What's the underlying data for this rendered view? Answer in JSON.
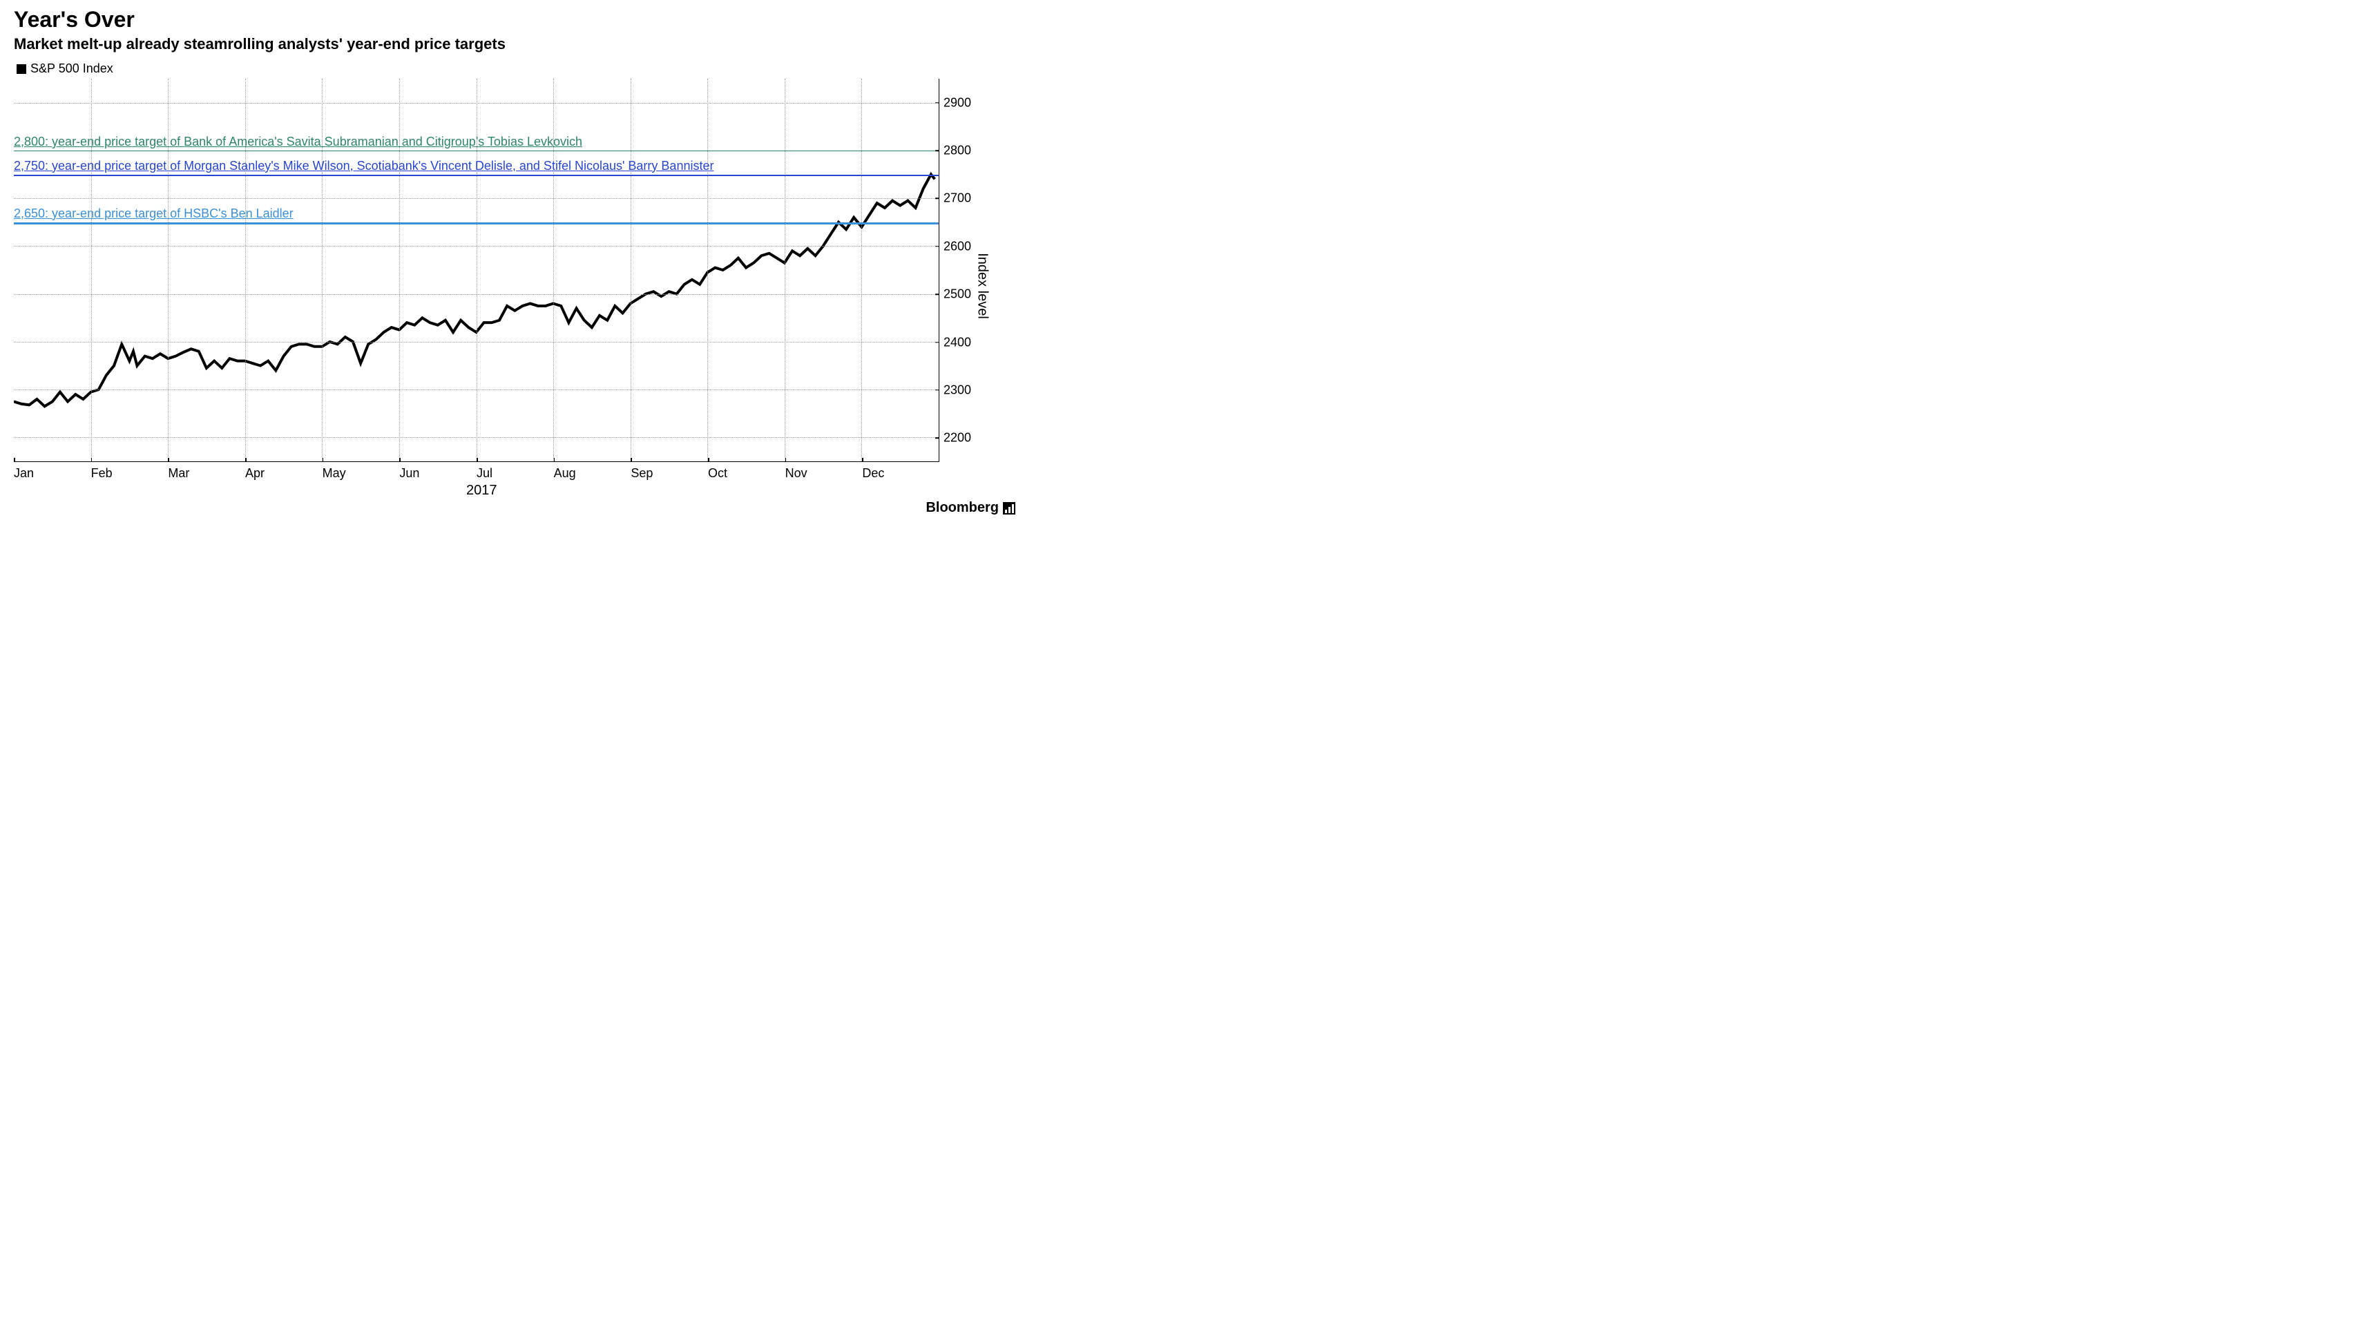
{
  "chart": {
    "type": "line",
    "title": "Year's Over",
    "subtitle": "Market melt-up already steamrolling analysts' year-end price targets",
    "legend_label": "S&P 500 Index",
    "legend_marker_color": "#000000",
    "y_axis_label": "Index level",
    "x_year_label": "2017",
    "source_label": "Bloomberg",
    "background_color": "#ffffff",
    "grid_color": "#999999",
    "axis_color": "#000000",
    "title_fontsize": 32,
    "subtitle_fontsize": 22,
    "label_fontsize": 18,
    "ylim": [
      2150,
      2950
    ],
    "y_ticks": [
      2200,
      2300,
      2400,
      2500,
      2600,
      2700,
      2800,
      2900
    ],
    "x_months": [
      "Jan",
      "Feb",
      "Mar",
      "Apr",
      "May",
      "Jun",
      "Jul",
      "Aug",
      "Sep",
      "Oct",
      "Nov",
      "Dec"
    ],
    "x_domain": [
      0,
      12
    ],
    "targets": [
      {
        "value": 2800,
        "color": "#2e8569",
        "line_width": 1.5,
        "label": "2,800: year-end price target of Bank of America's Savita Subramanian and Citigroup's Tobias Levkovich"
      },
      {
        "value": 2750,
        "color": "#2846d1",
        "line_width": 2,
        "label": "2,750: year-end price target of Morgan Stanley's Mike Wilson, Scotiabank's Vincent Delisle, and Stifel Nicolaus' Barry Bannister"
      },
      {
        "value": 2650,
        "color": "#3b8fd8",
        "line_width": 3,
        "label": "2,650: year-end price target of HSBC's Ben Laidler"
      }
    ],
    "series": {
      "name": "S&P 500 Index",
      "color": "#000000",
      "line_width": 2,
      "data": [
        [
          0.0,
          2275
        ],
        [
          0.1,
          2270
        ],
        [
          0.2,
          2268
        ],
        [
          0.3,
          2280
        ],
        [
          0.4,
          2265
        ],
        [
          0.5,
          2275
        ],
        [
          0.6,
          2295
        ],
        [
          0.7,
          2275
        ],
        [
          0.8,
          2290
        ],
        [
          0.9,
          2280
        ],
        [
          1.0,
          2295
        ],
        [
          1.1,
          2300
        ],
        [
          1.2,
          2330
        ],
        [
          1.3,
          2350
        ],
        [
          1.4,
          2395
        ],
        [
          1.5,
          2360
        ],
        [
          1.55,
          2380
        ],
        [
          1.6,
          2350
        ],
        [
          1.7,
          2370
        ],
        [
          1.8,
          2365
        ],
        [
          1.9,
          2375
        ],
        [
          2.0,
          2365
        ],
        [
          2.1,
          2370
        ],
        [
          2.2,
          2378
        ],
        [
          2.3,
          2385
        ],
        [
          2.4,
          2380
        ],
        [
          2.5,
          2345
        ],
        [
          2.6,
          2360
        ],
        [
          2.7,
          2345
        ],
        [
          2.8,
          2365
        ],
        [
          2.9,
          2360
        ],
        [
          3.0,
          2360
        ],
        [
          3.1,
          2355
        ],
        [
          3.2,
          2350
        ],
        [
          3.3,
          2360
        ],
        [
          3.4,
          2340
        ],
        [
          3.5,
          2370
        ],
        [
          3.6,
          2390
        ],
        [
          3.7,
          2395
        ],
        [
          3.8,
          2395
        ],
        [
          3.9,
          2390
        ],
        [
          4.0,
          2390
        ],
        [
          4.1,
          2400
        ],
        [
          4.2,
          2395
        ],
        [
          4.3,
          2410
        ],
        [
          4.4,
          2400
        ],
        [
          4.5,
          2355
        ],
        [
          4.6,
          2395
        ],
        [
          4.7,
          2405
        ],
        [
          4.8,
          2420
        ],
        [
          4.9,
          2430
        ],
        [
          5.0,
          2425
        ],
        [
          5.1,
          2440
        ],
        [
          5.2,
          2435
        ],
        [
          5.3,
          2450
        ],
        [
          5.4,
          2440
        ],
        [
          5.5,
          2435
        ],
        [
          5.6,
          2445
        ],
        [
          5.7,
          2420
        ],
        [
          5.8,
          2445
        ],
        [
          5.9,
          2430
        ],
        [
          6.0,
          2420
        ],
        [
          6.1,
          2440
        ],
        [
          6.2,
          2440
        ],
        [
          6.3,
          2445
        ],
        [
          6.4,
          2475
        ],
        [
          6.5,
          2465
        ],
        [
          6.6,
          2475
        ],
        [
          6.7,
          2480
        ],
        [
          6.8,
          2475
        ],
        [
          6.9,
          2475
        ],
        [
          7.0,
          2480
        ],
        [
          7.1,
          2475
        ],
        [
          7.2,
          2440
        ],
        [
          7.3,
          2470
        ],
        [
          7.4,
          2445
        ],
        [
          7.5,
          2430
        ],
        [
          7.6,
          2455
        ],
        [
          7.7,
          2445
        ],
        [
          7.8,
          2475
        ],
        [
          7.9,
          2460
        ],
        [
          8.0,
          2480
        ],
        [
          8.1,
          2490
        ],
        [
          8.2,
          2500
        ],
        [
          8.3,
          2505
        ],
        [
          8.4,
          2495
        ],
        [
          8.5,
          2505
        ],
        [
          8.6,
          2500
        ],
        [
          8.7,
          2520
        ],
        [
          8.8,
          2530
        ],
        [
          8.9,
          2520
        ],
        [
          9.0,
          2545
        ],
        [
          9.1,
          2555
        ],
        [
          9.2,
          2550
        ],
        [
          9.3,
          2560
        ],
        [
          9.4,
          2575
        ],
        [
          9.5,
          2555
        ],
        [
          9.6,
          2565
        ],
        [
          9.7,
          2580
        ],
        [
          9.8,
          2585
        ],
        [
          9.9,
          2575
        ],
        [
          10.0,
          2565
        ],
        [
          10.1,
          2590
        ],
        [
          10.2,
          2580
        ],
        [
          10.3,
          2595
        ],
        [
          10.4,
          2580
        ],
        [
          10.5,
          2600
        ],
        [
          10.6,
          2625
        ],
        [
          10.7,
          2650
        ],
        [
          10.8,
          2635
        ],
        [
          10.9,
          2660
        ],
        [
          11.0,
          2640
        ],
        [
          11.1,
          2665
        ],
        [
          11.2,
          2690
        ],
        [
          11.3,
          2680
        ],
        [
          11.4,
          2695
        ],
        [
          11.5,
          2685
        ],
        [
          11.6,
          2695
        ],
        [
          11.7,
          2680
        ],
        [
          11.8,
          2720
        ],
        [
          11.9,
          2750
        ],
        [
          11.95,
          2740
        ]
      ]
    }
  }
}
